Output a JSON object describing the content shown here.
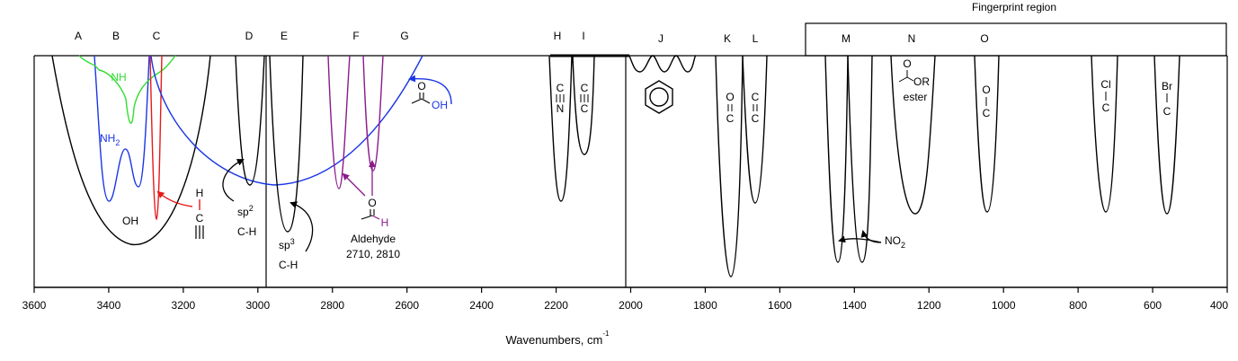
{
  "fingerprint_label": "Fingerprint region",
  "region_letters": [
    "A",
    "B",
    "C",
    "D",
    "E",
    "F",
    "G",
    "H",
    "I",
    "J",
    "K",
    "L",
    "M",
    "N",
    "O"
  ],
  "x_axis": {
    "label": "Wavenumbers, cm",
    "label_exp": "-1",
    "min": 3600,
    "max": 400,
    "reversed": true,
    "ticks": [
      "3600",
      "3400",
      "3200",
      "3000",
      "2800",
      "2600",
      "2400",
      "2200",
      "2000",
      "1800",
      "1600",
      "1400",
      "1200",
      "1000",
      "800",
      "600",
      "400"
    ]
  },
  "annotations": {
    "nh": "NH",
    "nh2": "NH",
    "nh2_sub": "2",
    "oh": "OH",
    "alkyne_h": "H",
    "alkyne_c": "C",
    "sp2": "sp",
    "sp2_sup": "2",
    "sp2_ch": "C-H",
    "sp3": "sp",
    "sp3_sup": "3",
    "sp3_ch": "C-H",
    "ald_o": "O",
    "ald_h": "H",
    "aldehyde": "Aldehyde",
    "aldehyde_freq": "2710, 2810",
    "acid_o": "O",
    "acid_oh": "OH",
    "cn_c": "C",
    "cn_n": "N",
    "cc3_c1": "C",
    "cc3_c2": "C",
    "co_o": "O",
    "co_c": "C",
    "cc2_c1": "C",
    "cc2_c2": "C",
    "no2": "NO",
    "no2_sub": "2",
    "ester_o": "O",
    "ester_or": "OR",
    "ester": "ester",
    "co1_o": "O",
    "co1_c": "C",
    "ccl_cl": "Cl",
    "ccl_c": "C",
    "cbr_br": "Br",
    "cbr_c": "C"
  },
  "colors": {
    "black": "#000000",
    "nh_green": "#33dd33",
    "nh2_blue": "#1a36e6",
    "alkyne_red": "#e61a1a",
    "aldehyde_purple": "#8b1a8b",
    "acid_blue": "#1a36e6"
  }
}
